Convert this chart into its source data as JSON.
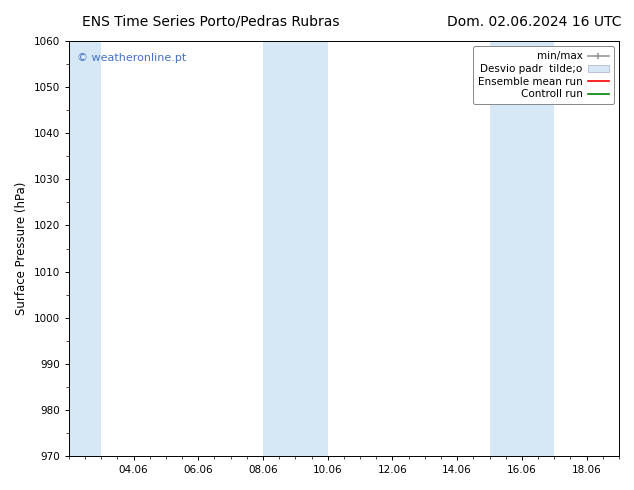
{
  "title_left": "ENS Time Series Porto/Pedras Rubras",
  "title_right": "Dom. 02.06.2024 16 UTC",
  "ylabel": "Surface Pressure (hPa)",
  "ylim": [
    970,
    1060
  ],
  "yticks": [
    970,
    980,
    990,
    1000,
    1010,
    1020,
    1030,
    1040,
    1050,
    1060
  ],
  "xlim": [
    0,
    17
  ],
  "xtick_labels": [
    "04.06",
    "06.06",
    "08.06",
    "10.06",
    "12.06",
    "14.06",
    "16.06",
    "18.06"
  ],
  "xtick_positions": [
    2,
    4,
    6,
    8,
    10,
    12,
    14,
    16
  ],
  "shaded_regions": [
    {
      "x_start": 0.0,
      "x_end": 1.0
    },
    {
      "x_start": 6.0,
      "x_end": 8.0
    },
    {
      "x_start": 13.0,
      "x_end": 15.0
    }
  ],
  "shade_color": "#d6e8f5",
  "watermark_text": "© weatheronline.pt",
  "watermark_color": "#4472c4",
  "background_color": "#ffffff",
  "plot_bg_color": "#ffffff",
  "title_fontsize": 10,
  "tick_fontsize": 7.5,
  "ylabel_fontsize": 8.5,
  "legend_fontsize": 7.5
}
